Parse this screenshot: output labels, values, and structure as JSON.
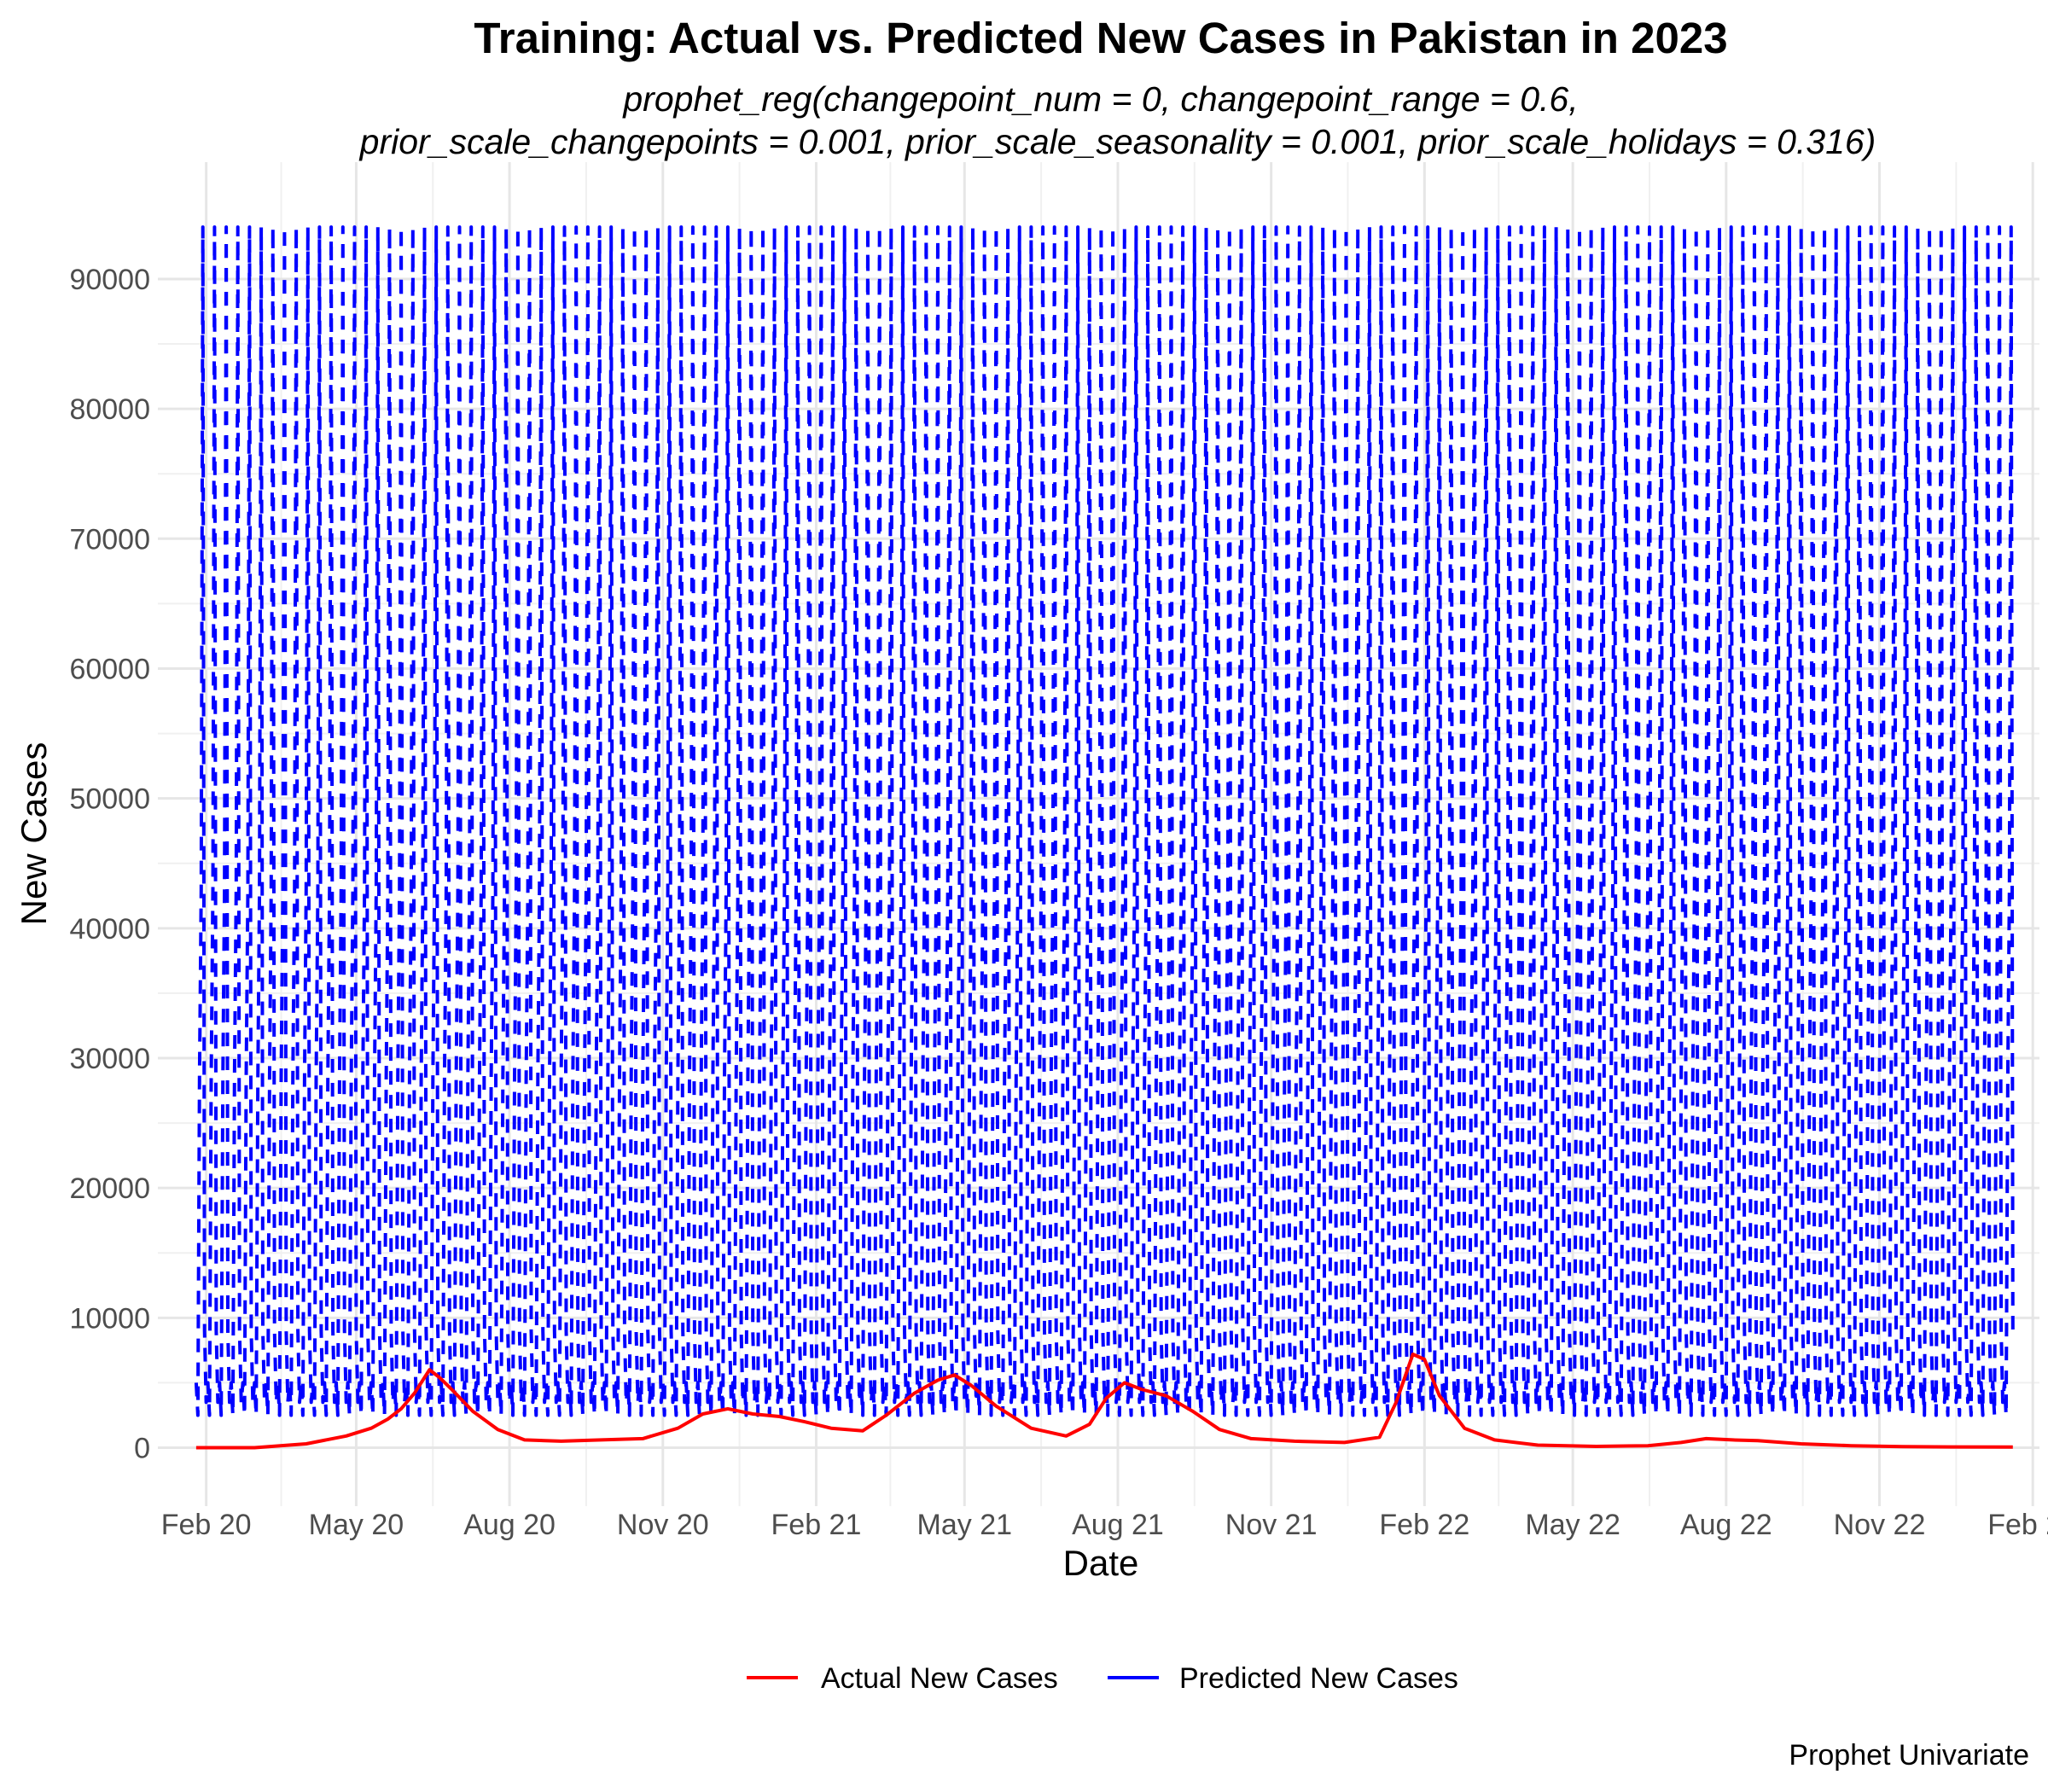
{
  "chart_data": {
    "type": "line",
    "title": "Training: Actual vs. Predicted New Cases in Pakistan in 2023",
    "subtitle_lines": [
      "prophet_reg(changepoint_num = 0, changepoint_range = 0.6,",
      "prior_scale_changepoints = 0.001, prior_scale_seasonality = 0.001, prior_scale_holidays = 0.316)"
    ],
    "xlabel": "Date",
    "ylabel": "New Cases",
    "caption": "Prophet Univariate",
    "x_ticks": [
      "Feb 20",
      "May 20",
      "Aug 20",
      "Nov 20",
      "Feb 21",
      "May 21",
      "Aug 21",
      "Nov 21",
      "Feb 22",
      "May 22",
      "Aug 22",
      "Nov 22",
      "Feb 23"
    ],
    "x_tick_dates": [
      "2020-02-01",
      "2020-05-01",
      "2020-08-01",
      "2020-11-01",
      "2021-02-01",
      "2021-05-01",
      "2021-08-01",
      "2021-11-01",
      "2022-02-01",
      "2022-05-01",
      "2022-08-01",
      "2022-11-01",
      "2023-02-01"
    ],
    "y_ticks": [
      0,
      10000,
      20000,
      30000,
      40000,
      50000,
      60000,
      70000,
      80000,
      90000
    ],
    "xlim": [
      "2020-01-03",
      "2023-02-05"
    ],
    "ylim": [
      -4500,
      99000
    ],
    "grid": true,
    "legend_position": "bottom",
    "series": [
      {
        "name": "Actual New Cases",
        "color": "#ff0000",
        "line_style": "solid",
        "points": [
          [
            "2020-01-26",
            0
          ],
          [
            "2020-03-01",
            0
          ],
          [
            "2020-04-01",
            300
          ],
          [
            "2020-04-25",
            900
          ],
          [
            "2020-05-10",
            1500
          ],
          [
            "2020-05-20",
            2200
          ],
          [
            "2020-05-28",
            3000
          ],
          [
            "2020-06-05",
            4200
          ],
          [
            "2020-06-14",
            6000
          ],
          [
            "2020-06-20",
            5400
          ],
          [
            "2020-06-28",
            4400
          ],
          [
            "2020-07-10",
            2800
          ],
          [
            "2020-07-25",
            1400
          ],
          [
            "2020-08-10",
            600
          ],
          [
            "2020-09-01",
            500
          ],
          [
            "2020-09-25",
            600
          ],
          [
            "2020-10-20",
            700
          ],
          [
            "2020-11-10",
            1500
          ],
          [
            "2020-11-25",
            2600
          ],
          [
            "2020-12-10",
            3000
          ],
          [
            "2020-12-25",
            2600
          ],
          [
            "2021-01-10",
            2400
          ],
          [
            "2021-01-25",
            2000
          ],
          [
            "2021-02-10",
            1500
          ],
          [
            "2021-03-01",
            1300
          ],
          [
            "2021-03-15",
            2500
          ],
          [
            "2021-04-01",
            4200
          ],
          [
            "2021-04-15",
            5200
          ],
          [
            "2021-04-25",
            5600
          ],
          [
            "2021-05-05",
            4800
          ],
          [
            "2021-05-20",
            3200
          ],
          [
            "2021-06-10",
            1500
          ],
          [
            "2021-07-01",
            900
          ],
          [
            "2021-07-15",
            1800
          ],
          [
            "2021-07-25",
            3800
          ],
          [
            "2021-08-05",
            5000
          ],
          [
            "2021-08-15",
            4500
          ],
          [
            "2021-08-30",
            4000
          ],
          [
            "2021-09-15",
            2800
          ],
          [
            "2021-10-01",
            1400
          ],
          [
            "2021-10-20",
            700
          ],
          [
            "2021-11-15",
            500
          ],
          [
            "2021-12-15",
            400
          ],
          [
            "2022-01-05",
            800
          ],
          [
            "2022-01-15",
            3500
          ],
          [
            "2022-01-25",
            7200
          ],
          [
            "2022-02-01",
            6800
          ],
          [
            "2022-02-10",
            4000
          ],
          [
            "2022-02-25",
            1500
          ],
          [
            "2022-03-15",
            600
          ],
          [
            "2022-04-10",
            200
          ],
          [
            "2022-05-15",
            100
          ],
          [
            "2022-06-15",
            150
          ],
          [
            "2022-07-05",
            400
          ],
          [
            "2022-07-20",
            700
          ],
          [
            "2022-08-05",
            600
          ],
          [
            "2022-08-20",
            550
          ],
          [
            "2022-09-15",
            300
          ],
          [
            "2022-10-15",
            150
          ],
          [
            "2022-11-15",
            80
          ],
          [
            "2022-12-15",
            60
          ],
          [
            "2023-01-20",
            50
          ]
        ]
      },
      {
        "name": "Predicted New Cases",
        "color": "#0000ff",
        "line_style": "dashed",
        "start": "2020-01-26",
        "end": "2023-01-20",
        "period_days": 7,
        "weekly_values": [
          5000,
          2500,
          28500,
          43000,
          94000,
          9000,
          3500
        ]
      }
    ]
  }
}
